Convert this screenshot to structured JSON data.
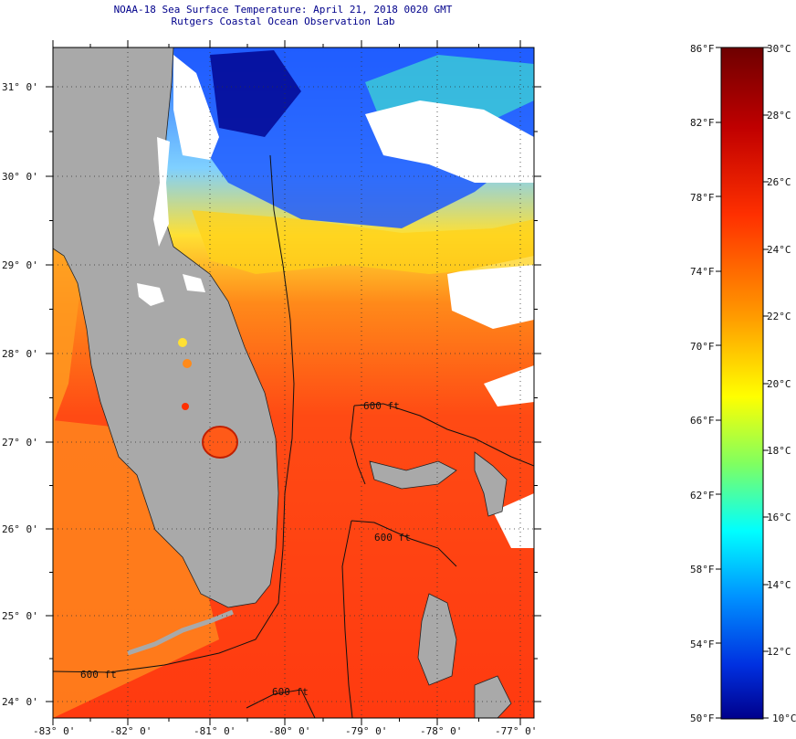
{
  "title_line1": "NOAA-18 Sea Surface Temperature:  April 21, 2018 0020 GMT",
  "title_line2": "Rutgers Coastal Ocean Observation Lab",
  "map": {
    "lat_labels": [
      "31° 0'",
      "30° 0'",
      "29° 0'",
      "28° 0'",
      "27° 0'",
      "26° 0'",
      "25° 0'",
      "24° 0'"
    ],
    "lon_labels": [
      "-83° 0'",
      "-82° 0'",
      "-81° 0'",
      "-80° 0'",
      "-79° 0'",
      "-78° 0'",
      "-77° 0'"
    ],
    "depth_labels": [
      "600 ft",
      "600 ft",
      "600 ft",
      "600 ft"
    ],
    "colors": {
      "land": "#a9a9a9",
      "cloud": "#ffffff",
      "warm_ocean": "#ff3c10",
      "mid_ocean": "#ff7a1a",
      "cool_ocean": "#ffd21a",
      "cold_water": "#1e5bff"
    }
  },
  "colorbar": {
    "fahrenheit_labels": [
      "86°F",
      "82°F",
      "78°F",
      "74°F",
      "70°F",
      "66°F",
      "62°F",
      "58°F",
      "54°F",
      "50°F"
    ],
    "celsius_labels": [
      "30°C",
      "28°C",
      "26°C",
      "24°C",
      "22°C",
      "20°C",
      "18°C",
      "16°C",
      "14°C",
      "12°C",
      "10°C"
    ],
    "gradient_colors": [
      "#7a0000",
      "#c80000",
      "#ff2000",
      "#ff7a00",
      "#ffc000",
      "#ffff00",
      "#a0ff40",
      "#00ffff",
      "#00a0ff",
      "#0040ff",
      "#0000a0"
    ]
  }
}
